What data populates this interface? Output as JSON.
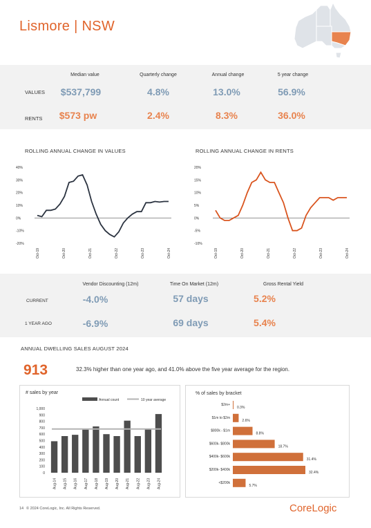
{
  "header": {
    "title": "Lismore  |  NSW",
    "logo": "CoreLogic"
  },
  "map": {
    "highlight_state": "NSW",
    "highlight_color": "#e8834e",
    "base_color": "#dfe3e8"
  },
  "summary": {
    "columns": [
      "Median value",
      "Quarterly change",
      "Annual change",
      "5 year change"
    ],
    "rows": [
      {
        "label": "VALUES",
        "values": [
          "$537,799",
          "4.8%",
          "13.0%",
          "56.9%"
        ]
      },
      {
        "label": "RENTS",
        "values": [
          "$573 pw",
          "2.4%",
          "8.3%",
          "36.0%"
        ]
      }
    ]
  },
  "charts": {
    "values_title": "ROLLING ANNUAL CHANGE IN VALUES",
    "rents_title": "ROLLING ANNUAL CHANGE IN RENTS"
  },
  "market": {
    "columns": [
      "Vendor Discounting (12m)",
      "Time On Market (12m)",
      "Gross Rental Yield"
    ],
    "rows": [
      {
        "label": "CURRENT",
        "values": [
          "-4.0%",
          "57 days",
          "5.2%"
        ]
      },
      {
        "label": "1 YEAR AGO",
        "values": [
          "-6.9%",
          "69 days",
          "5.4%"
        ]
      }
    ]
  },
  "sales": {
    "section_title": "ANNUAL DWELLING SALES AUGUST 2024",
    "count": "913",
    "description": "32.3% higher than one year ago, and 41.0% above the five year average for the region."
  },
  "footer": {
    "page": "14",
    "copyright": "© 2024 CoreLogic, Inc. All Rights Reserved."
  },
  "chart_data": [
    {
      "type": "line",
      "title": "ROLLING ANNUAL CHANGE IN VALUES",
      "x_tick_labels": [
        "Oct-19",
        "Oct-20",
        "Oct-21",
        "Oct-22",
        "Oct-23",
        "Oct-24"
      ],
      "y_tick_labels": [
        "40%",
        "30%",
        "20%",
        "10%",
        "0%",
        "-10%",
        "-20%"
      ],
      "ylim": [
        -20,
        40
      ],
      "color": "#2b3340",
      "x": [
        "Oct-19",
        "Dec-19",
        "Feb-20",
        "Apr-20",
        "Jun-20",
        "Aug-20",
        "Oct-20",
        "Dec-20",
        "Feb-21",
        "Apr-21",
        "Jun-21",
        "Aug-21",
        "Oct-21",
        "Dec-21",
        "Feb-22",
        "Apr-22",
        "Jun-22",
        "Aug-22",
        "Oct-22",
        "Dec-22",
        "Feb-23",
        "Apr-23",
        "Jun-23",
        "Aug-23",
        "Oct-23",
        "Dec-23",
        "Feb-24",
        "Apr-24",
        "Jun-24",
        "Aug-24"
      ],
      "values": [
        2,
        1,
        6,
        6,
        7,
        11,
        17,
        28,
        29,
        33,
        34,
        26,
        13,
        3,
        -5,
        -10,
        -13,
        -15,
        -11,
        -4,
        0,
        3,
        5,
        5,
        12,
        12,
        13,
        12.5,
        13,
        13
      ]
    },
    {
      "type": "line",
      "title": "ROLLING ANNUAL CHANGE IN RENTS",
      "x_tick_labels": [
        "Oct-19",
        "Oct-20",
        "Oct-21",
        "Oct-22",
        "Oct-23",
        "Oct-24"
      ],
      "y_tick_labels": [
        "20%",
        "15%",
        "10%",
        "5%",
        "0%",
        "-5%",
        "-10%"
      ],
      "ylim": [
        -10,
        20
      ],
      "color": "#d9541e",
      "x": [
        "Oct-19",
        "Dec-19",
        "Feb-20",
        "Apr-20",
        "Jun-20",
        "Aug-20",
        "Oct-20",
        "Dec-20",
        "Feb-21",
        "Apr-21",
        "Jun-21",
        "Aug-21",
        "Oct-21",
        "Dec-21",
        "Feb-22",
        "Apr-22",
        "Jun-22",
        "Aug-22",
        "Oct-22",
        "Dec-22",
        "Feb-23",
        "Apr-23",
        "Jun-23",
        "Aug-23",
        "Oct-23",
        "Dec-23",
        "Feb-24",
        "Apr-24",
        "Jun-24",
        "Aug-24"
      ],
      "values": [
        3,
        0,
        -1,
        -1,
        0,
        1,
        5,
        10,
        14,
        15,
        18,
        15,
        14,
        14,
        10,
        6,
        0,
        -5,
        -5,
        -4,
        1,
        4,
        6,
        8,
        8,
        8,
        7,
        8,
        8,
        8
      ]
    },
    {
      "type": "bar",
      "title": "# sales by year",
      "legend": [
        "Annual count",
        "10 year average"
      ],
      "categories": [
        "Aug-14",
        "Aug-15",
        "Aug-16",
        "Aug-17",
        "Aug-18",
        "Aug-19",
        "Aug-20",
        "Aug-21",
        "Aug-22",
        "Aug-23",
        "Aug-24"
      ],
      "values": [
        490,
        570,
        590,
        670,
        720,
        600,
        570,
        810,
        570,
        680,
        913
      ],
      "average": 680,
      "ylim": [
        0,
        1000
      ],
      "y_tick_labels": [
        "1,000",
        "900",
        "800",
        "700",
        "600",
        "500",
        "400",
        "300",
        "200",
        "100",
        "0"
      ],
      "bar_color": "#4d4d4d",
      "average_color": "#b3b3b3"
    },
    {
      "type": "bar",
      "orientation": "horizontal",
      "title": "% of sales by bracket",
      "categories": [
        "$2m+",
        "$1m to $2m",
        "$800k - $1m",
        "$600k- $800k",
        "$400k- $600k",
        "$200k- $400k",
        "<$200k"
      ],
      "values": [
        0.3,
        2.6,
        8.8,
        18.7,
        31.4,
        32.4,
        5.7
      ],
      "value_labels": [
        "0.3%",
        "2.6%",
        "8.8%",
        "18.7%",
        "31.4%",
        "32.4%",
        "5.7%"
      ],
      "bar_color": "#d0703a"
    }
  ]
}
